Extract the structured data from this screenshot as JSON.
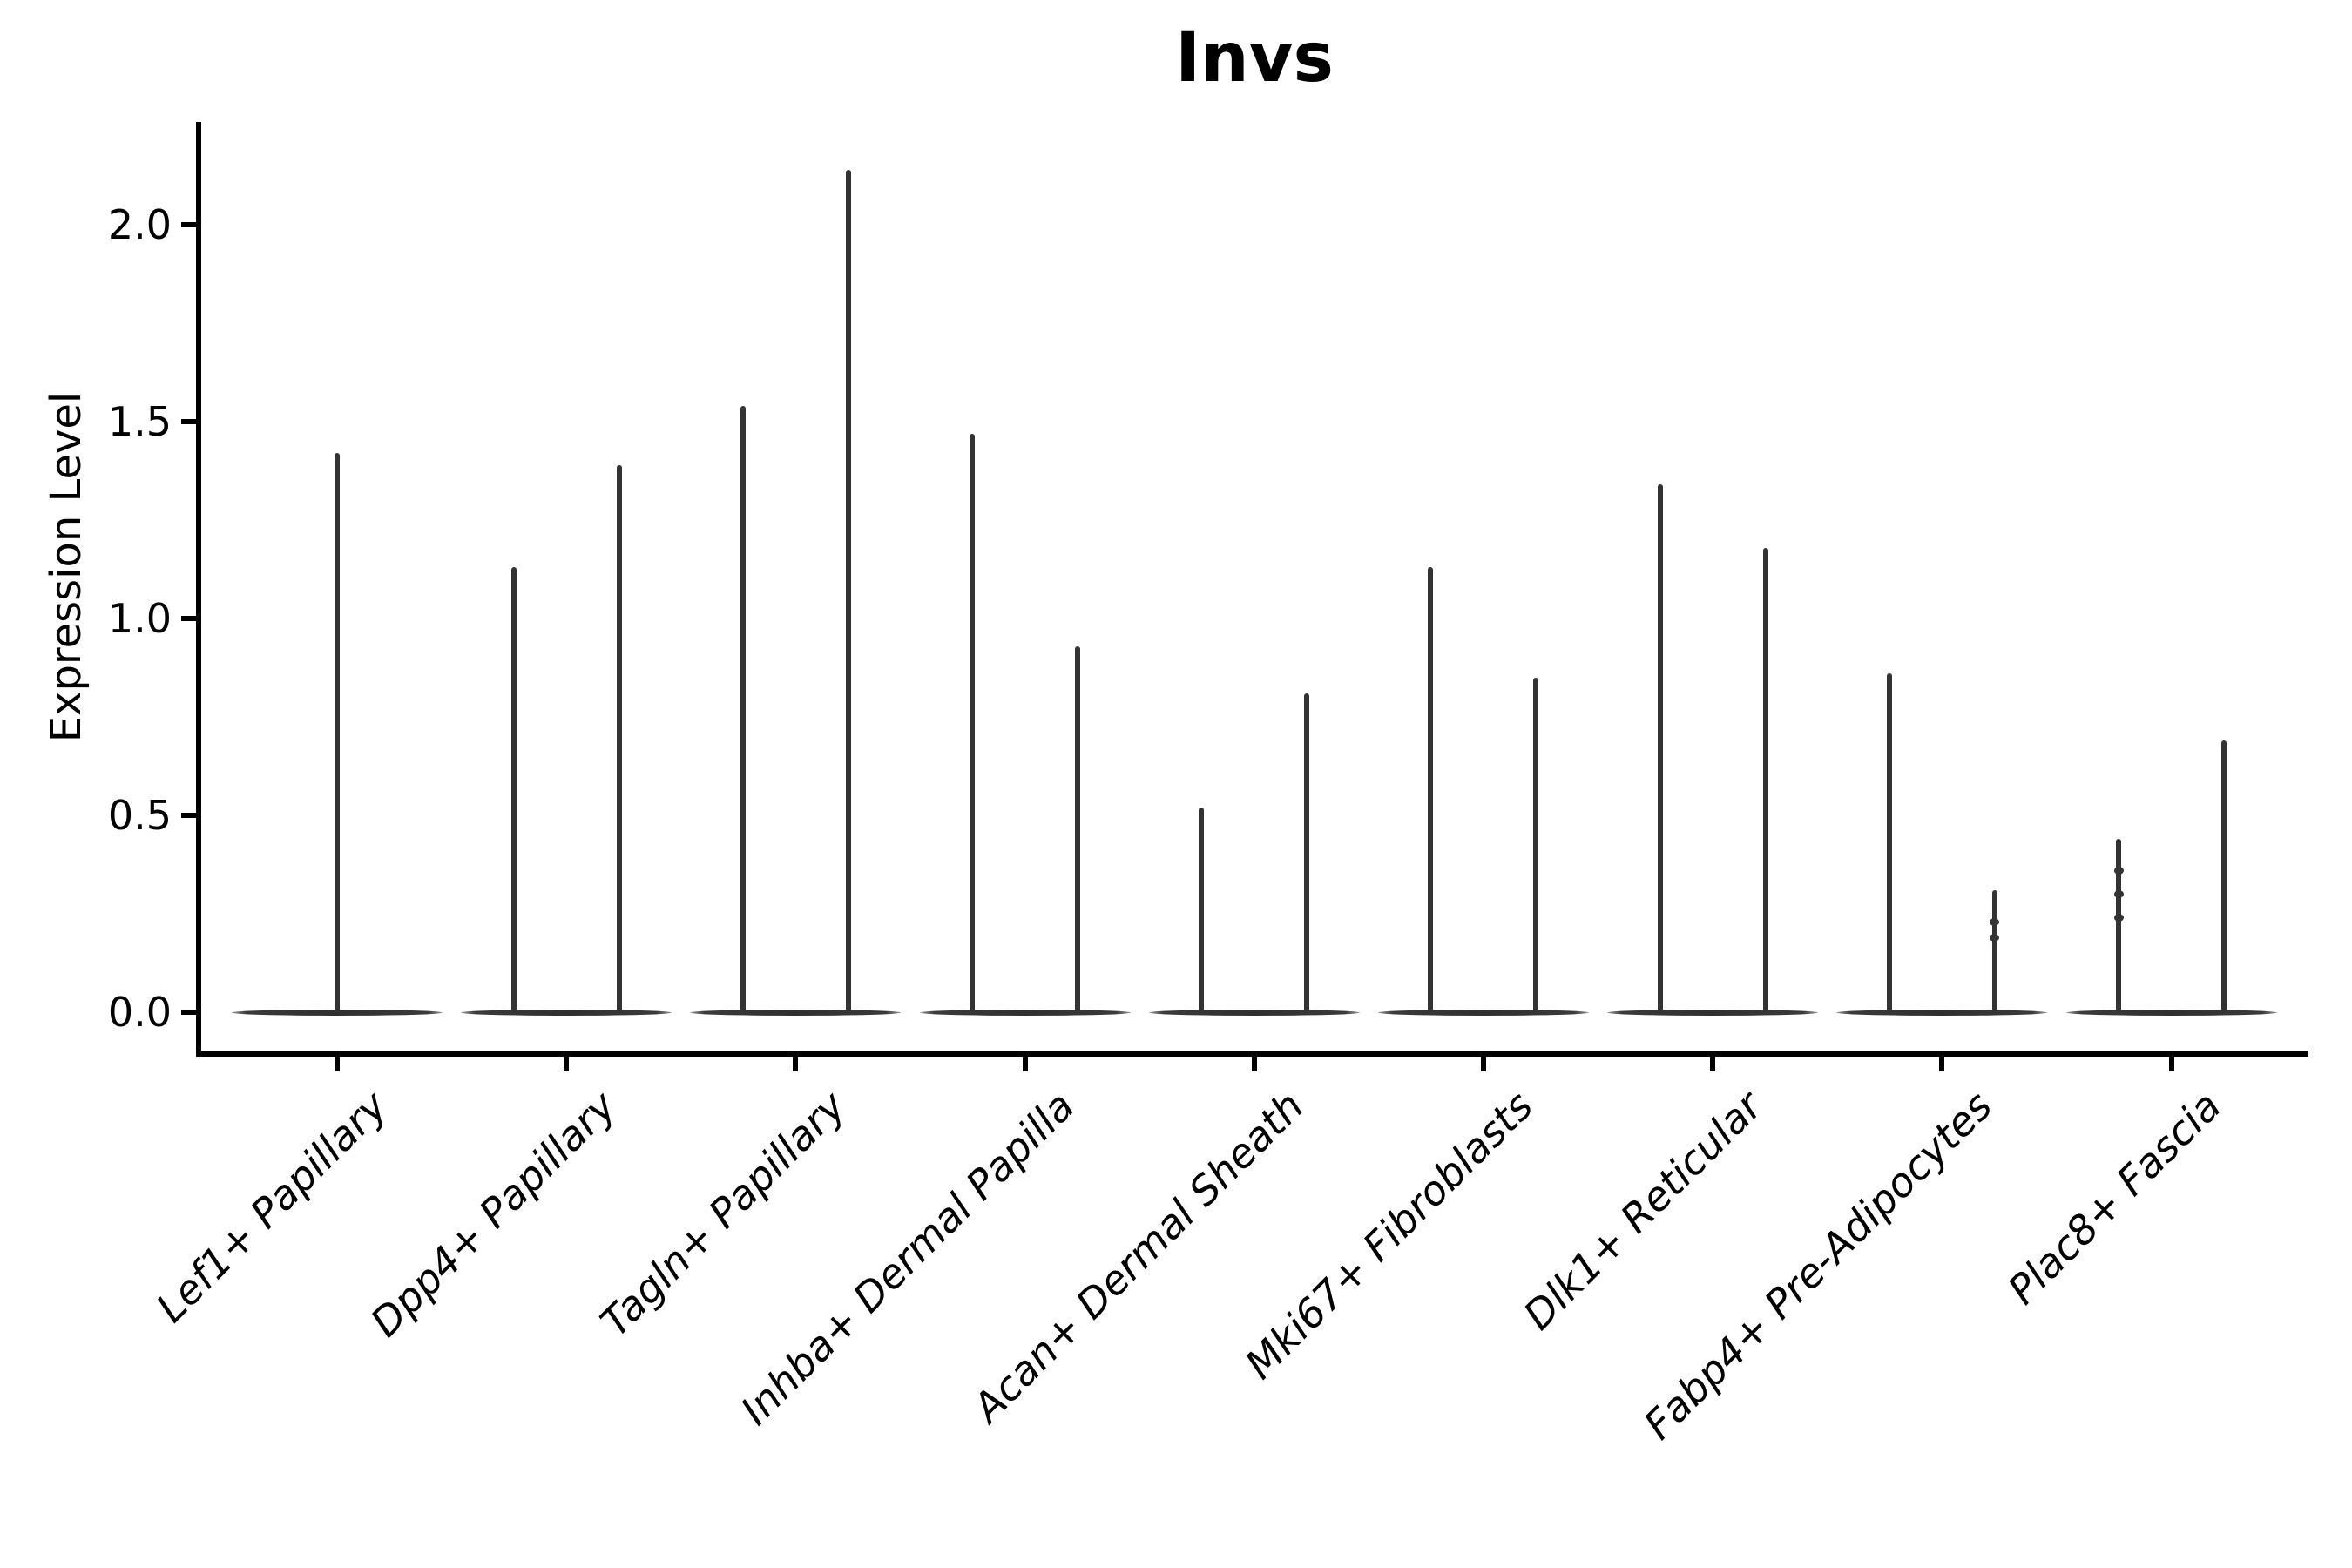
{
  "figure": {
    "title": "Invs",
    "background": "#ffffff"
  },
  "chart_data": {
    "type": "violin",
    "title": "Invs",
    "xlabel": "",
    "ylabel": "Expression Level",
    "ylim": [
      -0.104,
      2.262
    ],
    "yticks": [
      0.0,
      0.5,
      1.0,
      1.5,
      2.0
    ],
    "ytick_labels": [
      "0.0",
      "0.5",
      "1.0",
      "1.5",
      "2.0"
    ],
    "grid": false,
    "legend": "none",
    "axis_color": "#000000",
    "violin_color": "#333333",
    "categories": [
      "Lef1+ Papillary",
      "Dpp4+ Papillary",
      "Tagln+ Papillary",
      "Inhba+ Dermal Papilla",
      "Acan+ Dermal Sheath",
      "Mki67+ Fibroblasts",
      "Dlk1+ Reticular",
      "Fabp4+ Pre-Adipocytes",
      "Plac8+ Fascia"
    ],
    "series": [
      {
        "category": "Lef1+ Papillary",
        "violins": [
          {
            "pos": "center",
            "max": 1.42,
            "bumps": []
          }
        ]
      },
      {
        "category": "Dpp4+ Papillary",
        "violins": [
          {
            "pos": "left",
            "max": 1.13,
            "bumps": []
          },
          {
            "pos": "right",
            "max": 1.39,
            "bumps": []
          }
        ]
      },
      {
        "category": "Tagln+ Papillary",
        "violins": [
          {
            "pos": "left",
            "max": 1.54,
            "bumps": []
          },
          {
            "pos": "right",
            "max": 2.14,
            "bumps": []
          }
        ]
      },
      {
        "category": "Inhba+ Dermal Papilla",
        "violins": [
          {
            "pos": "left",
            "max": 1.47,
            "bumps": []
          },
          {
            "pos": "right",
            "max": 0.93,
            "bumps": []
          }
        ]
      },
      {
        "category": "Acan+ Dermal Sheath",
        "violins": [
          {
            "pos": "left",
            "max": 0.52,
            "bumps": []
          },
          {
            "pos": "right",
            "max": 0.81,
            "bumps": []
          }
        ]
      },
      {
        "category": "Mki67+ Fibroblasts",
        "violins": [
          {
            "pos": "left",
            "max": 1.13,
            "bumps": []
          },
          {
            "pos": "right",
            "max": 0.85,
            "bumps": []
          }
        ]
      },
      {
        "category": "Dlk1+ Reticular",
        "violins": [
          {
            "pos": "left",
            "max": 1.34,
            "bumps": []
          },
          {
            "pos": "right",
            "max": 1.18,
            "bumps": []
          }
        ]
      },
      {
        "category": "Fabp4+ Pre-Adipocytes",
        "violins": [
          {
            "pos": "left",
            "max": 0.86,
            "bumps": []
          },
          {
            "pos": "right",
            "max": 0.31,
            "bumps": [
              0.23,
              0.19
            ]
          }
        ]
      },
      {
        "category": "Plac8+ Fascia",
        "violins": [
          {
            "pos": "left",
            "max": 0.44,
            "bumps": [
              0.36,
              0.3,
              0.24
            ]
          },
          {
            "pos": "right",
            "max": 0.69,
            "bumps": []
          }
        ]
      }
    ],
    "baseline_value": 0.0,
    "description": "Each cell-type category shows narrow zero-width violins: a wide flat density bar at expression 0 with a thin spike up to the maximum expression value."
  }
}
